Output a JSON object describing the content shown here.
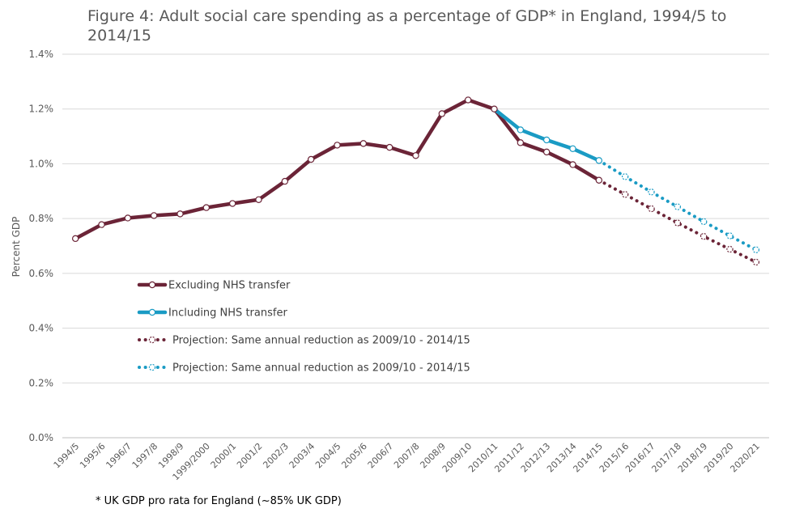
{
  "chart_data": {
    "type": "line",
    "title": "Figure 4: Adult social care spending as a percentage of GDP* in England, 1994/5 to 2014/15",
    "ylabel": "Percent GDP",
    "xlabel": "",
    "ylim": [
      0,
      1.4
    ],
    "yticks": [
      0,
      0.2,
      0.4,
      0.6,
      0.8,
      1.0,
      1.2,
      1.4
    ],
    "ytick_labels": [
      "0.0%",
      "0.2%",
      "0.4%",
      "0.6%",
      "0.8%",
      "1.0%",
      "1.2%",
      "1.4%"
    ],
    "grid": true,
    "categories": [
      "1994/5",
      "1995/6",
      "1996/7",
      "1997/8",
      "1998/9",
      "1999/2000",
      "2000/1",
      "2001/2",
      "2002/3",
      "2003/4",
      "2004/5",
      "2005/6",
      "2006/7",
      "2007/8",
      "2008/9",
      "2009/10",
      "2010/11",
      "2011/12",
      "2012/13",
      "2013/14",
      "2014/15",
      "2015/16",
      "2016/17",
      "2017/18",
      "2018/19",
      "2019/20",
      "2020/21"
    ],
    "series": [
      {
        "name": "Excluding NHS transfer",
        "color": "#6b2437",
        "style": "solid",
        "values": [
          0.727,
          0.778,
          0.802,
          0.811,
          0.817,
          0.84,
          0.855,
          0.869,
          0.936,
          1.016,
          1.068,
          1.074,
          1.06,
          1.03,
          1.183,
          1.233,
          1.2,
          1.077,
          1.043,
          0.997,
          0.94,
          null,
          null,
          null,
          null,
          null,
          null
        ]
      },
      {
        "name": "Including NHS transfer",
        "color": "#1a9bc4",
        "style": "solid",
        "values": [
          null,
          null,
          null,
          null,
          null,
          null,
          null,
          null,
          null,
          null,
          null,
          null,
          null,
          null,
          null,
          null,
          1.2,
          1.124,
          1.087,
          1.055,
          1.012,
          null,
          null,
          null,
          null,
          null,
          null
        ]
      },
      {
        "name": "Projection: Same annual reduction as 2009/10 - 2014/15",
        "color": "#6b2437",
        "style": "dotted",
        "values": [
          null,
          null,
          null,
          null,
          null,
          null,
          null,
          null,
          null,
          null,
          null,
          null,
          null,
          null,
          null,
          null,
          null,
          null,
          null,
          null,
          0.94,
          0.888,
          0.836,
          0.784,
          0.735,
          0.688,
          0.641
        ]
      },
      {
        "name": "Projection: Same annual reduction as 2009/10 - 2014/15",
        "color": "#1a9bc4",
        "style": "dotted",
        "values": [
          null,
          null,
          null,
          null,
          null,
          null,
          null,
          null,
          null,
          null,
          null,
          null,
          null,
          null,
          null,
          null,
          null,
          null,
          null,
          null,
          1.012,
          0.953,
          0.897,
          0.843,
          0.789,
          0.737,
          0.686
        ]
      }
    ],
    "legend_position": "center-left",
    "footnote": "* UK GDP pro rata for England (~85% UK GDP)"
  }
}
